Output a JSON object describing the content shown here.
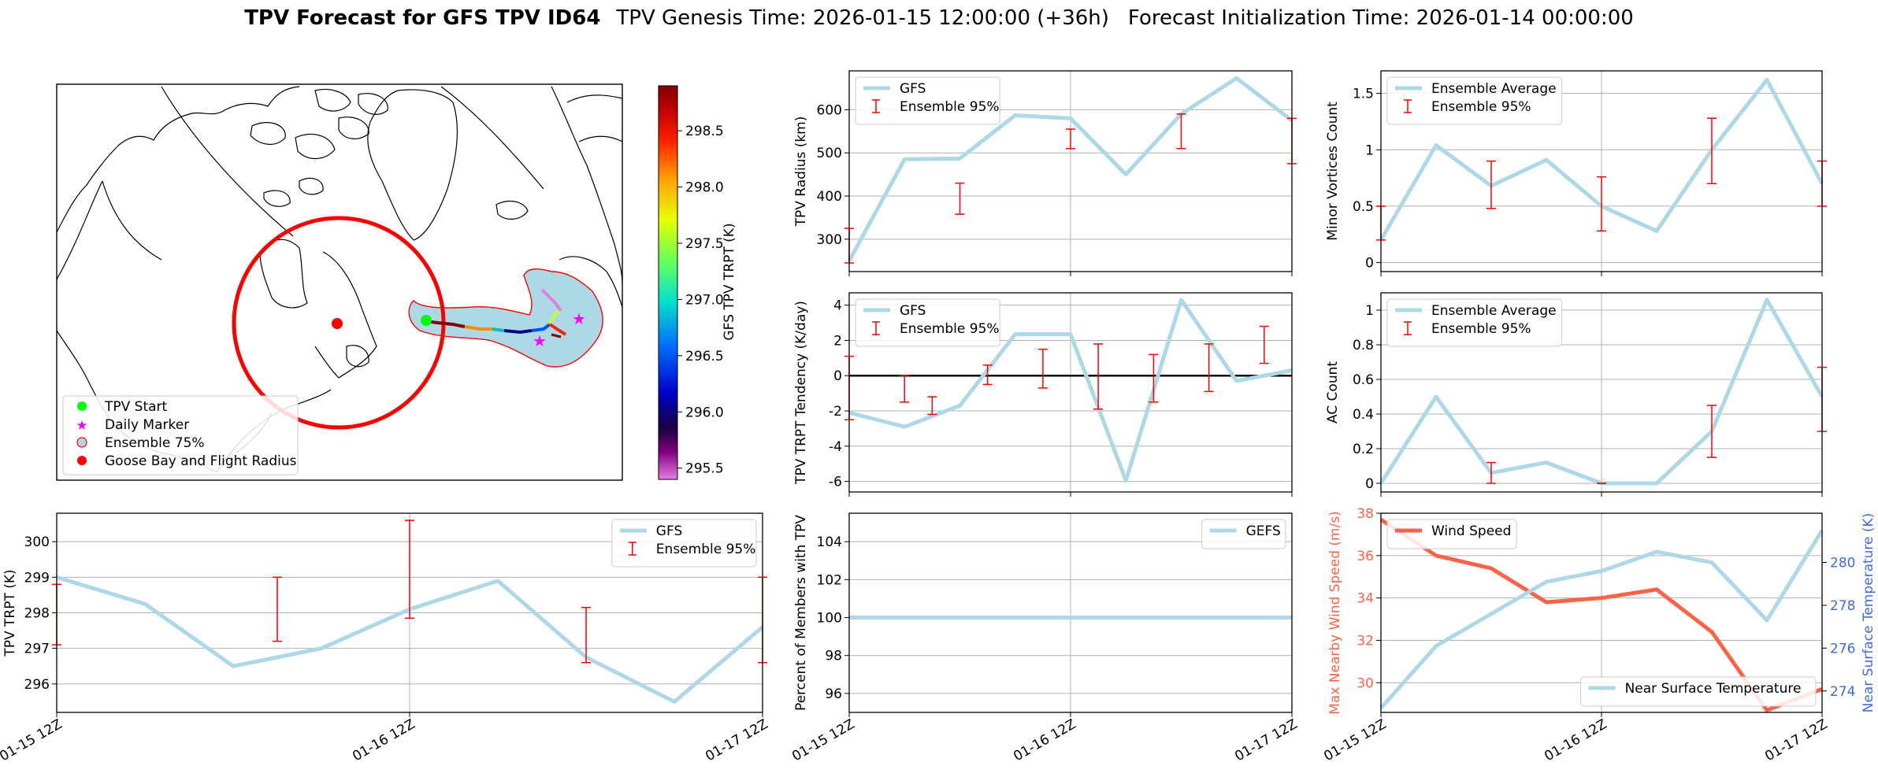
{
  "header": {
    "title_bold": "TPV Forecast for GFS TPV ID64",
    "title_genesis": "TPV Genesis Time: 2026-01-15 12:00:00 (+36h)",
    "title_init": "Forecast Initialization Time: 2026-01-14 00:00:00"
  },
  "colors": {
    "gfs_line": "#add8e6",
    "errorbar": "#ff0000",
    "wind": "#ff6347",
    "temp_axis": "#4169e1",
    "grid": "#b0b0b0"
  },
  "map": {
    "colorbar_label": "GFS TPV TRPT (K)",
    "colorbar_ticks": [
      "295.5",
      "296.0",
      "296.5",
      "297.0",
      "297.5",
      "298.0",
      "298.5"
    ],
    "colorbar_range": [
      295.4,
      298.9
    ],
    "legend": [
      {
        "label": "TPV Start",
        "icon": "green-dot-icon"
      },
      {
        "label": "Daily Marker",
        "icon": "magenta-star-icon"
      },
      {
        "label": "Ensemble 75%",
        "icon": "blue-circle-icon"
      },
      {
        "label": "Goose Bay and Flight Radius",
        "icon": "red-dot-icon"
      }
    ]
  },
  "chart_data": [
    {
      "id": "trpt",
      "type": "line",
      "ylabel": "TPV TRPT (K)",
      "xlabel": "",
      "x_tick_labels": [
        "01-15 12Z",
        "01-16 12Z",
        "01-17 12Z"
      ],
      "ylim": [
        295.2,
        300.8
      ],
      "yticks": [
        296,
        297,
        298,
        299,
        300
      ],
      "legend": [
        "GFS",
        "Ensemble 95%"
      ],
      "legend_loc": "upper right",
      "series": [
        {
          "name": "GFS",
          "x": [
            0,
            1,
            2,
            3,
            4,
            5,
            6,
            7,
            8
          ],
          "values": [
            299.0,
            298.25,
            296.5,
            297.0,
            298.1,
            298.9,
            296.75,
            295.5,
            297.6
          ]
        }
      ],
      "errorbars": [
        {
          "x": 0,
          "low": 297.1,
          "high": 298.8
        },
        {
          "x": 2.5,
          "low": 297.2,
          "high": 299.0
        },
        {
          "x": 4,
          "low": 297.85,
          "high": 300.6
        },
        {
          "x": 6,
          "low": 296.6,
          "high": 298.15
        },
        {
          "x": 8,
          "low": 296.6,
          "high": 299.0
        }
      ]
    },
    {
      "id": "radius",
      "type": "line",
      "ylabel": "TPV Radius (km)",
      "ylim": [
        225,
        690
      ],
      "yticks": [
        300,
        400,
        500,
        600
      ],
      "legend": [
        "GFS",
        "Ensemble 95%"
      ],
      "legend_loc": "upper left",
      "series": [
        {
          "name": "GFS",
          "x": [
            0,
            1,
            2,
            3,
            4,
            5,
            6,
            7,
            8
          ],
          "values": [
            250,
            485,
            487,
            587,
            580,
            450,
            590,
            673,
            575
          ]
        }
      ],
      "errorbars": [
        {
          "x": 0,
          "low": 245,
          "high": 325
        },
        {
          "x": 2,
          "low": 358,
          "high": 430
        },
        {
          "x": 4,
          "low": 510,
          "high": 555
        },
        {
          "x": 6,
          "low": 510,
          "high": 590
        },
        {
          "x": 8,
          "low": 475,
          "high": 580
        }
      ]
    },
    {
      "id": "minor",
      "type": "line",
      "ylabel": "Minor Vortices Count",
      "ylim": [
        -0.08,
        1.7
      ],
      "yticks": [
        0.0,
        0.5,
        1.0,
        1.5
      ],
      "legend": [
        "Ensemble Average",
        "Ensemble 95%"
      ],
      "legend_loc": "upper left",
      "series": [
        {
          "name": "Ensemble Average",
          "x": [
            0,
            1,
            2,
            3,
            4,
            5,
            6,
            7,
            8
          ],
          "values": [
            0.2,
            1.04,
            0.68,
            0.91,
            0.5,
            0.28,
            1.0,
            1.62,
            0.7
          ]
        }
      ],
      "errorbars": [
        {
          "x": 0,
          "low": 0.2,
          "high": 0.5
        },
        {
          "x": 2,
          "low": 0.48,
          "high": 0.9
        },
        {
          "x": 4,
          "low": 0.28,
          "high": 0.76
        },
        {
          "x": 6,
          "low": 0.7,
          "high": 1.28
        },
        {
          "x": 8,
          "low": 0.5,
          "high": 0.9
        }
      ]
    },
    {
      "id": "tendency",
      "type": "line",
      "ylabel": "TPV TRPT Tendency (K/day)",
      "ylim": [
        -6.6,
        4.7
      ],
      "yticks": [
        -6,
        -4,
        -2,
        0,
        2,
        4
      ],
      "legend": [
        "GFS",
        "Ensemble 95%"
      ],
      "legend_loc": "upper left",
      "series": [
        {
          "name": "GFS",
          "x": [
            0,
            1,
            2,
            3,
            4,
            5,
            6,
            7,
            8
          ],
          "values": [
            -2.1,
            -2.9,
            -1.7,
            2.35,
            2.35,
            -5.95,
            4.3,
            -0.3,
            0.3
          ]
        }
      ],
      "errorbars": [
        {
          "x": 0,
          "low": -2.5,
          "high": 1.1
        },
        {
          "x": 1,
          "low": -1.5,
          "high": 0
        },
        {
          "x": 1.5,
          "low": -2.2,
          "high": -1.2
        },
        {
          "x": 2.5,
          "low": -0.5,
          "high": 0.6
        },
        {
          "x": 3.5,
          "low": -0.7,
          "high": 1.5
        },
        {
          "x": 4.5,
          "low": -1.9,
          "high": 1.8
        },
        {
          "x": 5.5,
          "low": -1.5,
          "high": 1.2
        },
        {
          "x": 6.5,
          "low": -0.9,
          "high": 1.8
        },
        {
          "x": 7.5,
          "low": 0.7,
          "high": 2.8
        }
      ]
    },
    {
      "id": "ac",
      "type": "line",
      "ylabel": "AC Count",
      "ylim": [
        -0.05,
        1.1
      ],
      "yticks": [
        0.0,
        0.2,
        0.4,
        0.6,
        0.8,
        1.0
      ],
      "legend": [
        "Ensemble Average",
        "Ensemble 95%"
      ],
      "legend_loc": "upper left",
      "series": [
        {
          "name": "Ensemble Average",
          "x": [
            0,
            1,
            2,
            3,
            4,
            5,
            6,
            7,
            8
          ],
          "values": [
            0.0,
            0.5,
            0.06,
            0.12,
            0.0,
            0.0,
            0.3,
            1.06,
            0.5
          ]
        }
      ],
      "errorbars": [
        {
          "x": 2,
          "low": 0.0,
          "high": 0.12
        },
        {
          "x": 4,
          "low": 0.0,
          "high": 0.0
        },
        {
          "x": 6,
          "low": 0.15,
          "high": 0.45
        },
        {
          "x": 8,
          "low": 0.3,
          "high": 0.67
        }
      ]
    },
    {
      "id": "percent",
      "type": "line",
      "ylabel": "Percent of Members with TPV",
      "ylim": [
        95,
        105.5
      ],
      "yticks": [
        96,
        98,
        100,
        102,
        104
      ],
      "legend": [
        "GEFS"
      ],
      "legend_loc": "upper right",
      "series": [
        {
          "name": "GEFS",
          "x": [
            0,
            1,
            2,
            3,
            4,
            5,
            6,
            7,
            8
          ],
          "values": [
            100,
            100,
            100,
            100,
            100,
            100,
            100,
            100,
            100
          ]
        }
      ],
      "errorbars": []
    },
    {
      "id": "wind",
      "type": "line",
      "ylabel": "Max Nearby Wind Speed (m/s)",
      "ylabel2": "Near Surface Temperature (K)",
      "ylim": [
        28.6,
        38.0
      ],
      "yticks": [
        30,
        32,
        34,
        36,
        38
      ],
      "ylim2": [
        273.0,
        282.3
      ],
      "yticks2": [
        274,
        276,
        278,
        280
      ],
      "legend": [
        "Wind Speed"
      ],
      "legend2": [
        "Near Surface Temperature"
      ],
      "series": [
        {
          "name": "Wind Speed",
          "axis": "left",
          "x": [
            0,
            1,
            2,
            3,
            4,
            5,
            6,
            7,
            8
          ],
          "values": [
            37.7,
            36.0,
            35.4,
            33.8,
            34.0,
            34.4,
            32.4,
            28.7,
            29.7
          ]
        },
        {
          "name": "Near Surface Temperature",
          "axis": "right",
          "x": [
            0,
            1,
            2,
            3,
            4,
            5,
            6,
            7,
            8
          ],
          "values": [
            273.2,
            276.1,
            277.6,
            279.1,
            279.6,
            280.5,
            280.0,
            277.3,
            281.5
          ]
        }
      ],
      "errorbars": []
    }
  ]
}
